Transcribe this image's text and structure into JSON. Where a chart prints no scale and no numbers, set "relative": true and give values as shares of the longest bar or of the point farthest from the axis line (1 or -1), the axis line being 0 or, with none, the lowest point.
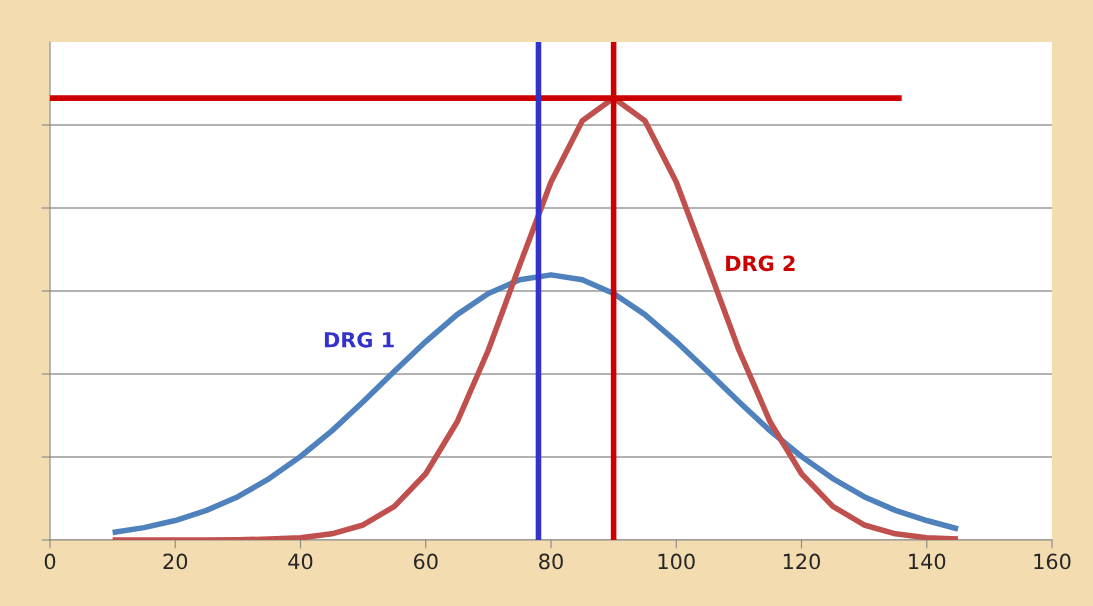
{
  "chart_data": {
    "type": "line",
    "relative": true,
    "x": [
      10,
      15,
      20,
      25,
      30,
      35,
      40,
      45,
      50,
      55,
      60,
      65,
      70,
      75,
      80,
      85,
      90,
      95,
      100,
      105,
      110,
      115,
      120,
      125,
      130,
      135,
      140,
      145
    ],
    "xlim": [
      0,
      160
    ],
    "xticks": [
      0,
      20,
      40,
      60,
      80,
      100,
      120,
      140,
      160
    ],
    "grid": "y",
    "marker": "none",
    "line_style": "solid",
    "series": [
      {
        "name": "DRG 1",
        "color": "#4f81bd",
        "values": [
          0.017,
          0.028,
          0.044,
          0.067,
          0.098,
          0.139,
          0.189,
          0.247,
          0.313,
          0.382,
          0.449,
          0.51,
          0.558,
          0.589,
          0.6,
          0.589,
          0.558,
          0.51,
          0.449,
          0.382,
          0.313,
          0.247,
          0.189,
          0.139,
          0.098,
          0.067,
          0.044,
          0.025
        ]
      },
      {
        "name": "DRG 2",
        "color": "#c0504d",
        "values": [
          0,
          0,
          0,
          0,
          0.0005,
          0.002,
          0.005,
          0.014,
          0.034,
          0.076,
          0.15,
          0.267,
          0.43,
          0.622,
          0.81,
          0.949,
          1,
          0.949,
          0.81,
          0.622,
          0.43,
          0.267,
          0.15,
          0.076,
          0.034,
          0.014,
          0.005,
          0.002
        ]
      },
      {
        "color": "#cc0000",
        "x": [
          0,
          136
        ],
        "values": [
          1,
          1
        ]
      }
    ],
    "ref_lines": [
      {
        "axis": "x",
        "value": 78,
        "color": "#3333cc"
      },
      {
        "axis": "x",
        "value": 90,
        "color": "#cc0000"
      }
    ]
  }
}
